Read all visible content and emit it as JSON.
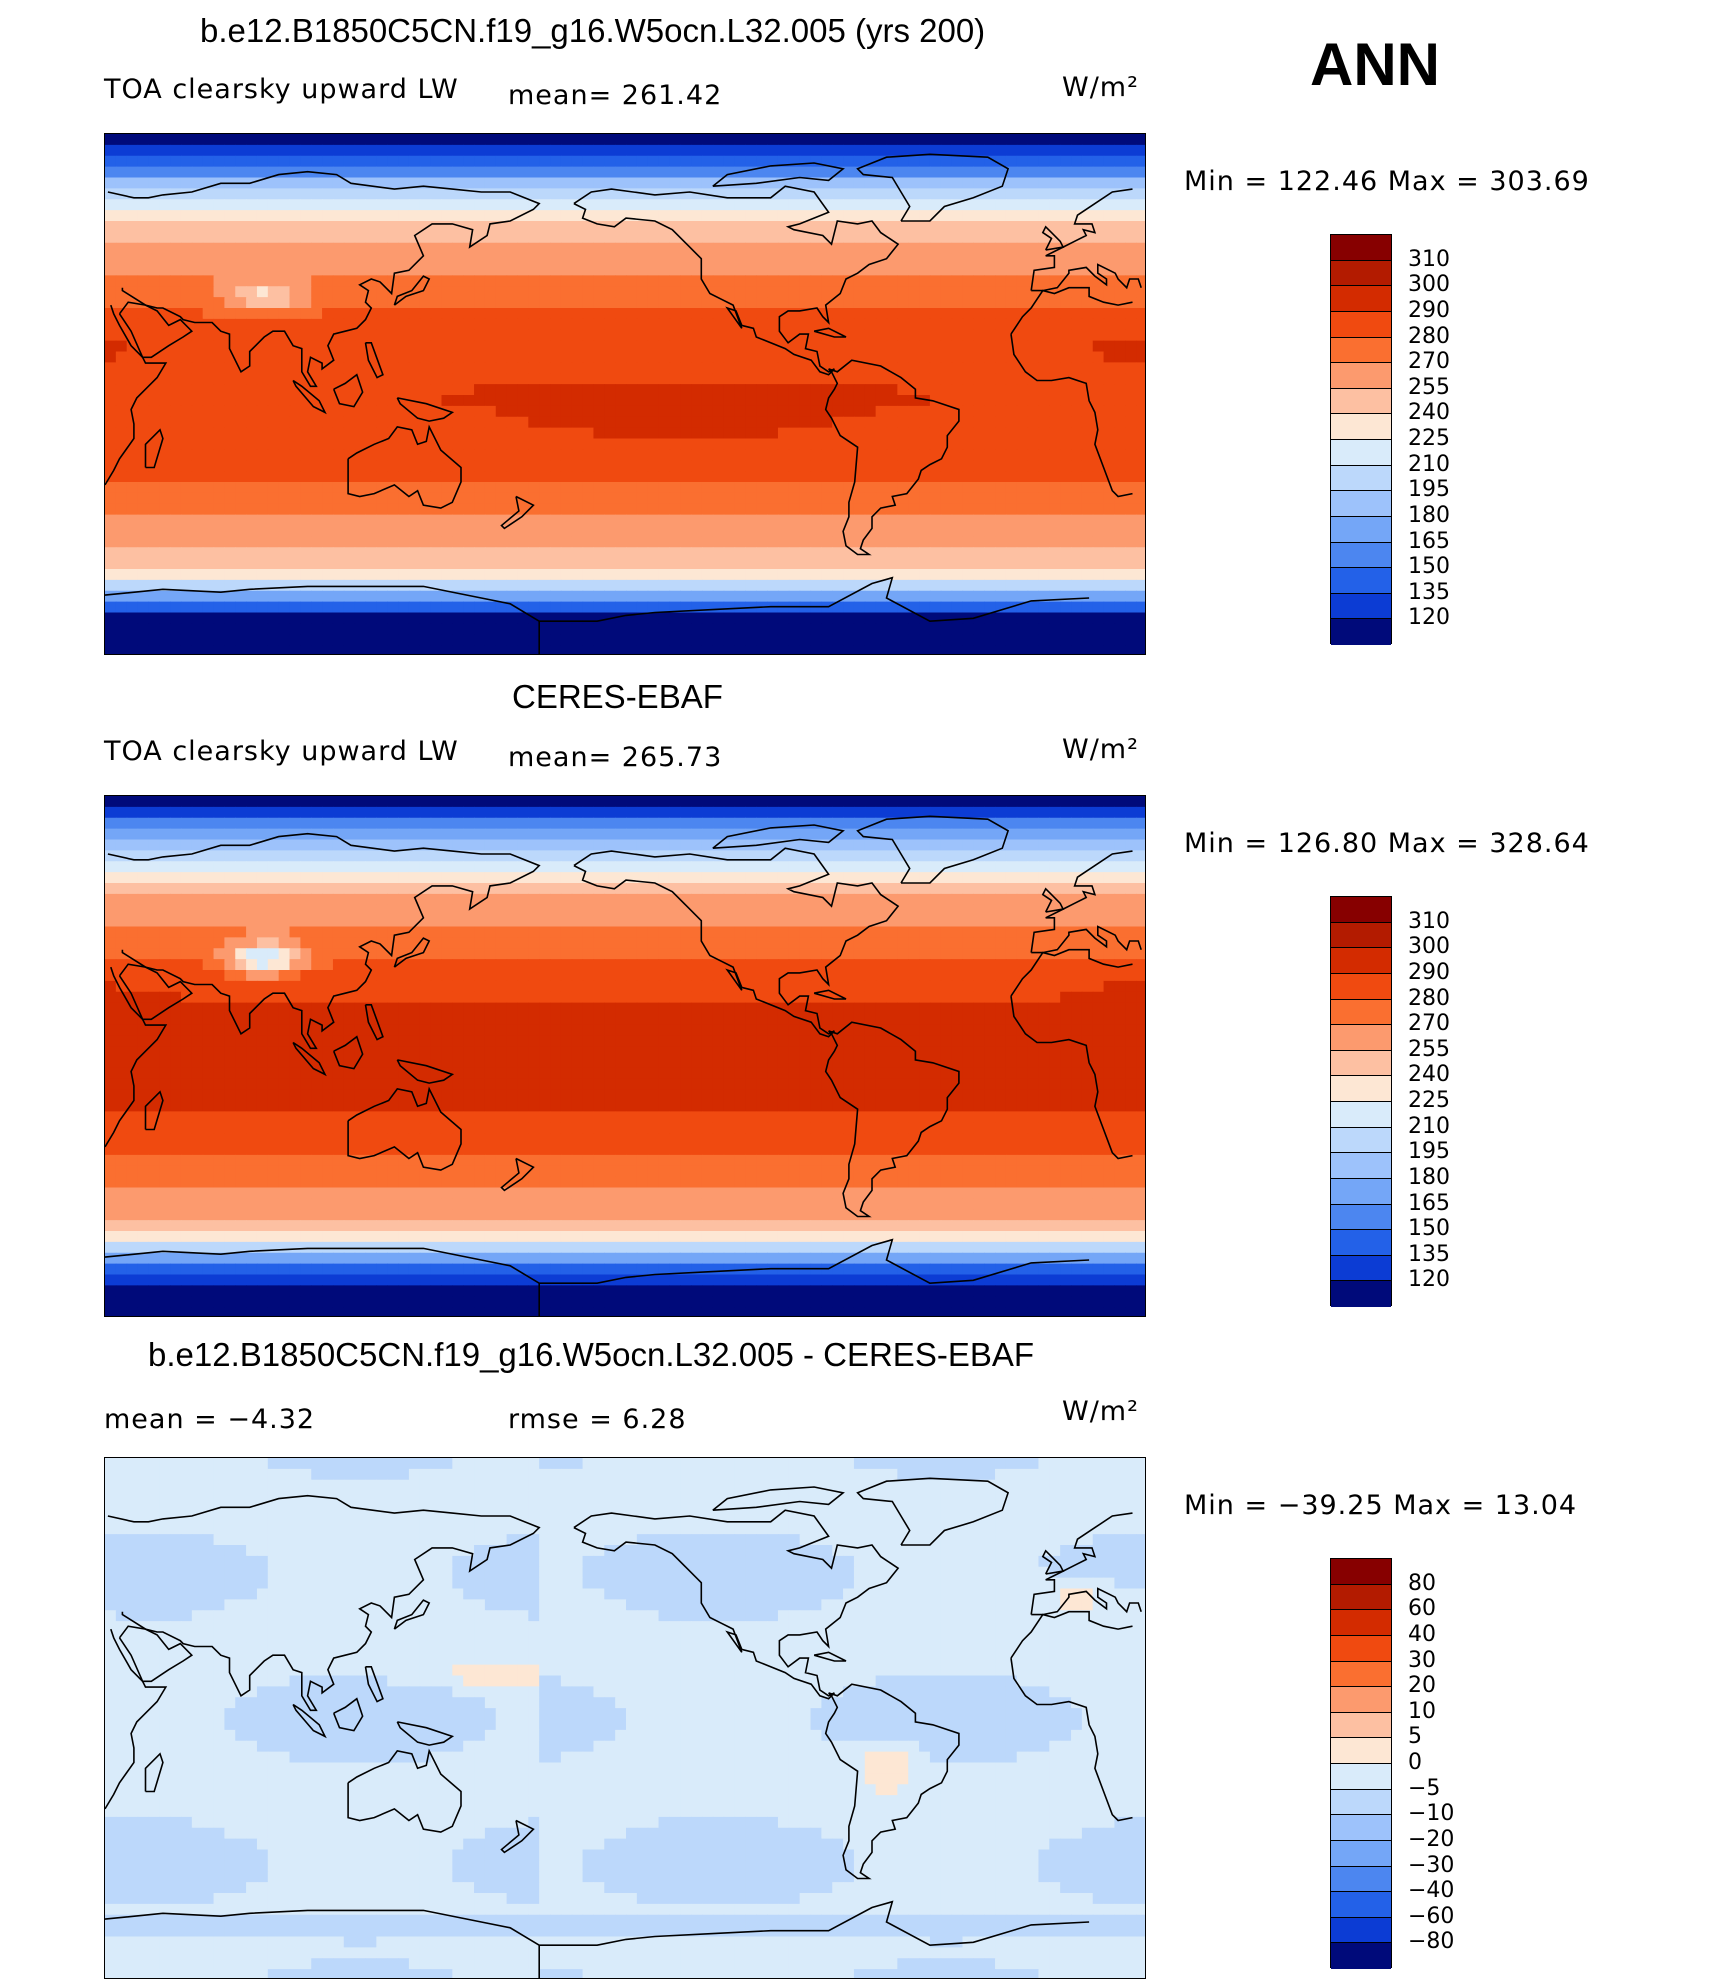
{
  "season": "ANN",
  "units": "W/m²",
  "panels": [
    {
      "title": "b.e12.B1850C5CN.f19_g16.W5ocn.L32.005 (yrs 200)",
      "variable": "TOA clearsky upward LW",
      "stat_left": "mean=  261.42",
      "min_max": "Min  =  122.46  Max  =  303.69",
      "palette": "abs",
      "field": "model"
    },
    {
      "title": "CERES-EBAF",
      "variable": "TOA clearsky upward LW",
      "stat_left": "mean=  265.73",
      "min_max": "Min  =  126.80  Max  =  328.64",
      "palette": "abs",
      "field": "obs"
    },
    {
      "title": "b.e12.B1850C5CN.f19_g16.W5ocn.L32.005 - CERES-EBAF",
      "stat_mean": "mean  =     −4.32",
      "stat_rmse": "rmse  =      6.28",
      "min_max": "Min  =  −39.25  Max  =     13.04",
      "palette": "diff",
      "field": "diff"
    }
  ],
  "colorbars": {
    "abs": {
      "labels": [
        "310",
        "300",
        "290",
        "280",
        "270",
        "255",
        "240",
        "225",
        "210",
        "195",
        "180",
        "165",
        "150",
        "135",
        "120"
      ],
      "colors": [
        "#870000",
        "#b31b00",
        "#d32b00",
        "#f04a10",
        "#fa6f30",
        "#fc9a6e",
        "#fdc0a2",
        "#fde7d4",
        "#d9ebfa",
        "#bcd8fb",
        "#9dc2fb",
        "#74a6f7",
        "#4c86f0",
        "#2361e8",
        "#0c3cd4",
        "#000a7a"
      ]
    },
    "diff": {
      "labels": [
        "80",
        "60",
        "40",
        "30",
        "20",
        "10",
        "5",
        "0",
        "−5",
        "−10",
        "−20",
        "−30",
        "−40",
        "−60",
        "−80"
      ],
      "colors": [
        "#870000",
        "#b31b00",
        "#d32b00",
        "#f04a10",
        "#fa6f30",
        "#fc9a6e",
        "#fdc0a2",
        "#fde7d4",
        "#d9ebfa",
        "#bcd8fb",
        "#9dc2fb",
        "#74a6f7",
        "#4c86f0",
        "#2361e8",
        "#0c3cd4",
        "#000a7a"
      ]
    }
  }
}
